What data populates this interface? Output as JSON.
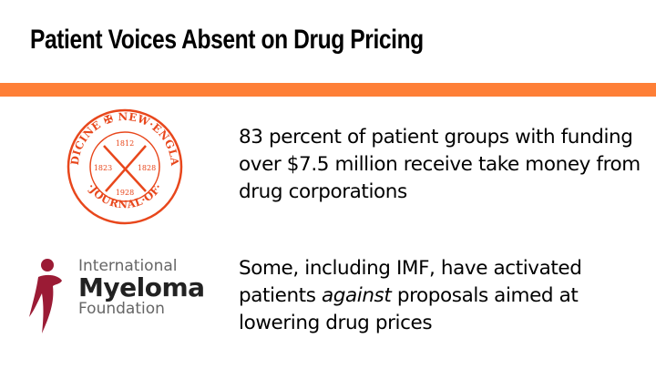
{
  "slide": {
    "title": "Patient Voices Absent on Drug Pricing",
    "accent_color": "#fe7f37"
  },
  "nejm_logo": {
    "ring_text_top": "MEDICINE ✠ NEW·ENGLAND",
    "ring_text_bottom": "·JOURNAL·OF·",
    "year_top": "1812",
    "year_left": "1823",
    "year_right": "1828",
    "year_bottom": "1928",
    "color": "#e8471c"
  },
  "imf_logo": {
    "line1": "International",
    "line2": "Myeloma",
    "line3": "Foundation",
    "figure_color": "#9b1b35"
  },
  "bullets": [
    {
      "text": "83 percent of patient groups with funding over $7.5 million receive take money from drug corporations"
    },
    {
      "before": "Some, including IMF, have activated patients ",
      "emphasis": "against",
      "after": " proposals aimed at lowering drug prices"
    }
  ]
}
